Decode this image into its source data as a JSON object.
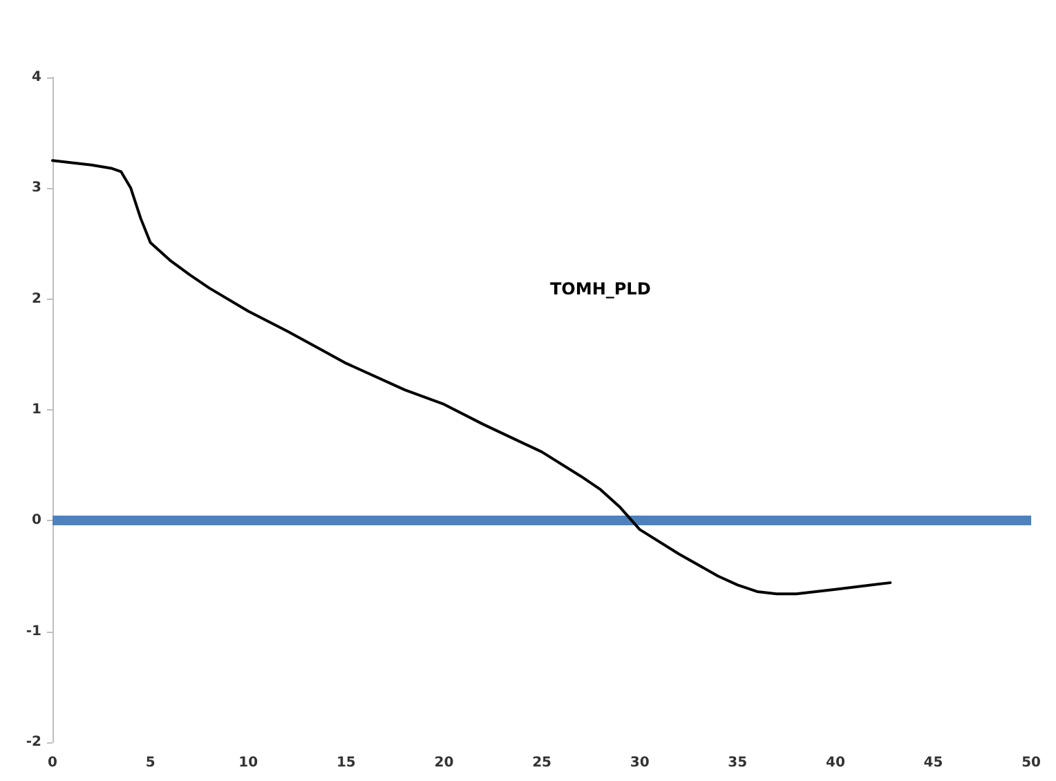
{
  "chart_data": {
    "type": "line",
    "x": [
      0,
      1,
      2,
      3,
      3.5,
      4,
      4.5,
      5,
      6,
      7,
      8,
      10,
      12,
      15,
      18,
      20,
      22,
      25,
      27,
      28,
      29,
      29.5,
      30,
      32,
      34,
      35,
      36,
      37,
      38,
      40,
      42.8
    ],
    "series": [
      {
        "color": "#000000",
        "values": [
          3.25,
          3.23,
          3.21,
          3.18,
          3.15,
          3.0,
          2.73,
          2.51,
          2.35,
          2.22,
          2.1,
          1.89,
          1.71,
          1.42,
          1.18,
          1.05,
          0.87,
          0.62,
          0.4,
          0.28,
          0.12,
          0.02,
          -0.08,
          -0.3,
          -0.5,
          -0.58,
          -0.64,
          -0.66,
          -0.66,
          -0.62,
          -0.56
        ]
      }
    ],
    "xlim": [
      0,
      50
    ],
    "xticks": [
      0,
      5,
      10,
      15,
      20,
      25,
      30,
      35,
      40,
      45,
      50
    ],
    "ylim": [
      -2,
      4
    ],
    "yticks": [
      -2,
      -1,
      0,
      1,
      2,
      3,
      4
    ],
    "ref_lines": [
      {
        "axis": "y",
        "value": 0,
        "color": "#4f81bd"
      }
    ],
    "annotations": [
      "TOMH_PLD"
    ],
    "grid": false,
    "marker": "none",
    "line_style": "solid"
  }
}
